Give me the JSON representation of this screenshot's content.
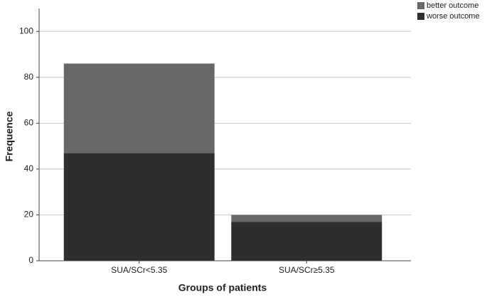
{
  "chart_data": {
    "type": "stacked-bar",
    "x_label": "Groups of patients",
    "y_label": "Frequence",
    "categories": [
      "SUA/SCr<5.35",
      "SUA/SCr≥5.35"
    ],
    "series": [
      {
        "name": "worse outcome",
        "color": "#2e2e2e",
        "values": [
          47,
          17
        ]
      },
      {
        "name": "better outcome",
        "color": "#686868",
        "values": [
          39,
          3
        ]
      }
    ],
    "ylim": [
      0,
      110
    ],
    "yticks": [
      0,
      20,
      40,
      60,
      80,
      100
    ],
    "grid": true,
    "legend": "top-right"
  }
}
